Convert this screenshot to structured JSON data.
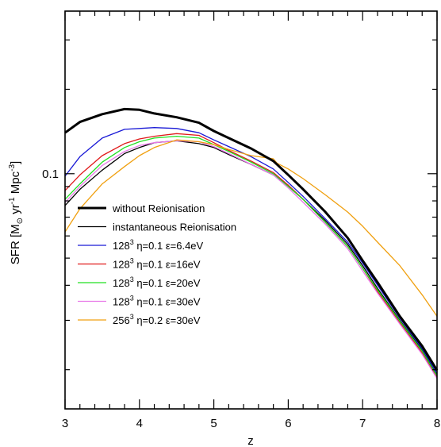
{
  "chart_data": {
    "type": "line",
    "xlabel": "z",
    "ylabel_parts": {
      "lead": "SFR [M",
      "sun": "⊙",
      "yr": " yr",
      "yr_exp": "-1",
      "mpc": " Mpc",
      "mpc_exp": "-3",
      "close": "]"
    },
    "xlim": [
      3,
      8
    ],
    "ylim": [
      0.0145,
      0.38
    ],
    "yscale": "log",
    "x_ticks": [
      3,
      4,
      5,
      6,
      7,
      8
    ],
    "x_tick_labels": [
      "3",
      "4",
      "5",
      "6",
      "7",
      "8"
    ],
    "y_tick_labels": [
      {
        "value": 0.1,
        "label": "0.1"
      }
    ],
    "y_minor_ticks": [
      0.02,
      0.03,
      0.04,
      0.05,
      0.06,
      0.07,
      0.08,
      0.09,
      0.2,
      0.3
    ],
    "legend_position": "left",
    "series": [
      {
        "name": "without Reionisation",
        "color": "#000000",
        "thick": true,
        "points": [
          [
            3.0,
            0.14
          ],
          [
            3.2,
            0.153
          ],
          [
            3.5,
            0.163
          ],
          [
            3.8,
            0.17
          ],
          [
            4.0,
            0.169
          ],
          [
            4.2,
            0.164
          ],
          [
            4.5,
            0.159
          ],
          [
            4.8,
            0.152
          ],
          [
            5.0,
            0.142
          ],
          [
            5.2,
            0.134
          ],
          [
            5.5,
            0.123
          ],
          [
            5.8,
            0.111
          ],
          [
            6.0,
            0.099
          ],
          [
            6.2,
            0.088
          ],
          [
            6.5,
            0.073
          ],
          [
            6.8,
            0.059
          ],
          [
            7.0,
            0.049
          ],
          [
            7.2,
            0.041
          ],
          [
            7.5,
            0.031
          ],
          [
            7.8,
            0.0243
          ],
          [
            8.0,
            0.0199
          ]
        ]
      },
      {
        "name": "instantaneous Reionisation",
        "color": "#000000",
        "thick": false,
        "points": [
          [
            3.0,
            0.077
          ],
          [
            3.2,
            0.088
          ],
          [
            3.5,
            0.103
          ],
          [
            3.8,
            0.118
          ],
          [
            4.0,
            0.124
          ],
          [
            4.2,
            0.129
          ],
          [
            4.5,
            0.131
          ],
          [
            4.8,
            0.128
          ],
          [
            5.0,
            0.124
          ],
          [
            5.2,
            0.117
          ],
          [
            5.5,
            0.108
          ],
          [
            5.8,
            0.099
          ],
          [
            6.0,
            0.091
          ],
          [
            6.2,
            0.081
          ],
          [
            6.5,
            0.068
          ],
          [
            6.8,
            0.056
          ],
          [
            7.0,
            0.047
          ],
          [
            7.2,
            0.039
          ],
          [
            7.5,
            0.03
          ],
          [
            7.8,
            0.0235
          ],
          [
            8.0,
            0.0191
          ]
        ]
      },
      {
        "name": "128³ η=0.1 ε=6.4eV",
        "label_base": "128",
        "label_exp": "3",
        "label_rest": " η=0.1  ε=6.4eV",
        "color": "#1a1ad6",
        "thick": false,
        "points": [
          [
            3.0,
            0.098
          ],
          [
            3.2,
            0.115
          ],
          [
            3.5,
            0.134
          ],
          [
            3.8,
            0.144
          ],
          [
            4.0,
            0.145
          ],
          [
            4.2,
            0.146
          ],
          [
            4.5,
            0.145
          ],
          [
            4.8,
            0.14
          ],
          [
            5.0,
            0.132
          ],
          [
            5.2,
            0.125
          ],
          [
            5.5,
            0.115
          ],
          [
            5.8,
            0.104
          ],
          [
            6.0,
            0.093
          ],
          [
            6.2,
            0.083
          ],
          [
            6.5,
            0.069
          ],
          [
            6.8,
            0.057
          ],
          [
            7.0,
            0.048
          ],
          [
            7.2,
            0.04
          ],
          [
            7.5,
            0.0305
          ],
          [
            7.8,
            0.0238
          ],
          [
            8.0,
            0.0194
          ]
        ]
      },
      {
        "name": "128³ η=0.1 ε=16eV",
        "label_base": "128",
        "label_exp": "3",
        "label_rest": " η=0.1  ε=16eV",
        "color": "#e01a1a",
        "thick": false,
        "points": [
          [
            3.0,
            0.087
          ],
          [
            3.2,
            0.099
          ],
          [
            3.5,
            0.116
          ],
          [
            3.8,
            0.128
          ],
          [
            4.0,
            0.133
          ],
          [
            4.2,
            0.136
          ],
          [
            4.5,
            0.139
          ],
          [
            4.8,
            0.137
          ],
          [
            5.0,
            0.129
          ],
          [
            5.2,
            0.121
          ],
          [
            5.5,
            0.111
          ],
          [
            5.8,
            0.101
          ],
          [
            6.0,
            0.091
          ],
          [
            6.2,
            0.081
          ],
          [
            6.5,
            0.067
          ],
          [
            6.8,
            0.055
          ],
          [
            7.0,
            0.046
          ],
          [
            7.2,
            0.038
          ],
          [
            7.5,
            0.0295
          ],
          [
            7.8,
            0.023
          ],
          [
            8.0,
            0.0188
          ]
        ]
      },
      {
        "name": "128³ η=0.1 ε=20eV",
        "label_base": "128",
        "label_exp": "3",
        "label_rest": " η=0.1  ε=20eV",
        "color": "#22e022",
        "thick": false,
        "points": [
          [
            3.0,
            0.081
          ],
          [
            3.2,
            0.092
          ],
          [
            3.5,
            0.11
          ],
          [
            3.8,
            0.124
          ],
          [
            4.0,
            0.13
          ],
          [
            4.2,
            0.134
          ],
          [
            4.5,
            0.136
          ],
          [
            4.8,
            0.134
          ],
          [
            5.0,
            0.127
          ],
          [
            5.2,
            0.12
          ],
          [
            5.5,
            0.11
          ],
          [
            5.8,
            0.1
          ],
          [
            6.0,
            0.09
          ],
          [
            6.2,
            0.081
          ],
          [
            6.5,
            0.067
          ],
          [
            6.8,
            0.055
          ],
          [
            7.0,
            0.046
          ],
          [
            7.2,
            0.0385
          ],
          [
            7.5,
            0.0298
          ],
          [
            7.8,
            0.0233
          ],
          [
            8.0,
            0.019
          ]
        ]
      },
      {
        "name": "128³ η=0.1 ε=30eV",
        "label_base": "128",
        "label_exp": "3",
        "label_rest": " η=0.1  ε=30eV",
        "color": "#e879e8",
        "thick": false,
        "points": [
          [
            3.0,
            0.079
          ],
          [
            3.2,
            0.09
          ],
          [
            3.5,
            0.107
          ],
          [
            3.8,
            0.12
          ],
          [
            4.0,
            0.126
          ],
          [
            4.2,
            0.129
          ],
          [
            4.5,
            0.131
          ],
          [
            4.8,
            0.13
          ],
          [
            5.0,
            0.125
          ],
          [
            5.2,
            0.118
          ],
          [
            5.5,
            0.108
          ],
          [
            5.8,
            0.099
          ],
          [
            6.0,
            0.089
          ],
          [
            6.2,
            0.079
          ],
          [
            6.5,
            0.066
          ],
          [
            6.8,
            0.054
          ],
          [
            7.0,
            0.045
          ],
          [
            7.2,
            0.0375
          ],
          [
            7.5,
            0.0291
          ],
          [
            7.8,
            0.0227
          ],
          [
            8.0,
            0.0186
          ]
        ]
      },
      {
        "name": "256³ η=0.2 ε=30eV",
        "label_base": "256",
        "label_exp": "3",
        "label_rest": " η=0.2  ε=30eV",
        "color": "#f0a010",
        "thick": false,
        "points": [
          [
            3.0,
            0.062
          ],
          [
            3.2,
            0.075
          ],
          [
            3.5,
            0.092
          ],
          [
            3.8,
            0.106
          ],
          [
            4.0,
            0.116
          ],
          [
            4.2,
            0.124
          ],
          [
            4.5,
            0.132
          ],
          [
            4.8,
            0.13
          ],
          [
            5.0,
            0.127
          ],
          [
            5.2,
            0.122
          ],
          [
            5.5,
            0.116
          ],
          [
            5.8,
            0.113
          ],
          [
            5.85,
            0.109
          ],
          [
            6.0,
            0.104
          ],
          [
            6.2,
            0.096
          ],
          [
            6.5,
            0.084
          ],
          [
            6.8,
            0.073
          ],
          [
            7.0,
            0.065
          ],
          [
            7.2,
            0.057
          ],
          [
            7.5,
            0.047
          ],
          [
            7.8,
            0.037
          ],
          [
            8.0,
            0.031
          ]
        ]
      }
    ]
  }
}
